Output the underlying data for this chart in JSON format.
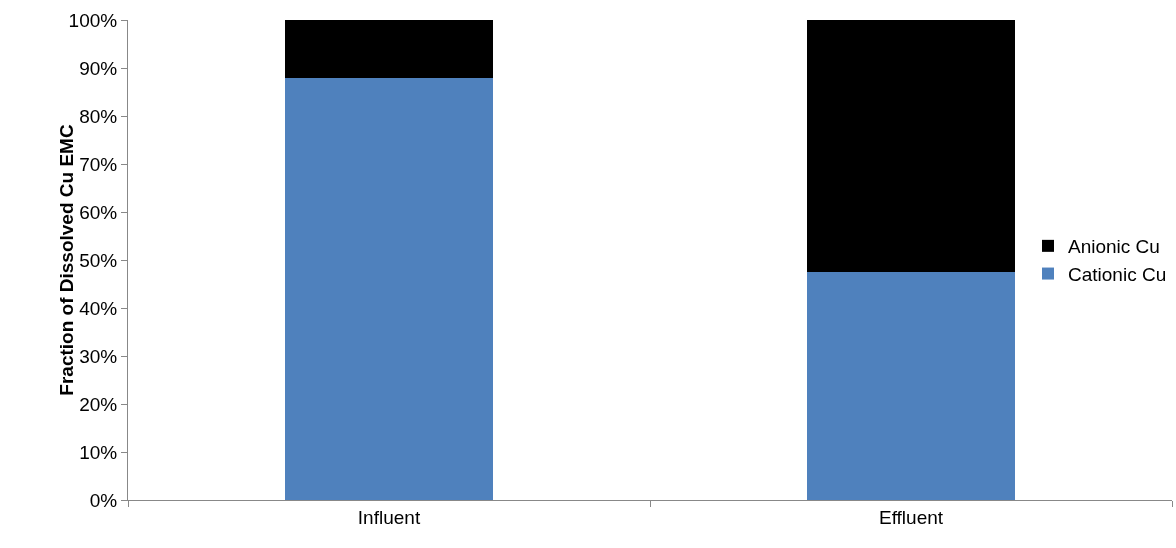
{
  "chart_data": {
    "type": "bar",
    "stacked": true,
    "ylabel": "Fraction of Dissolved Cu EMC",
    "categories": [
      "Influent",
      "Effluent"
    ],
    "series": [
      {
        "name": "Cationic Cu",
        "color": "#4f81bd",
        "values": [
          88,
          47.5
        ]
      },
      {
        "name": "Anionic Cu",
        "color": "#000000",
        "values": [
          12,
          52.5
        ]
      }
    ],
    "ylim": [
      0,
      100
    ],
    "yticks": [
      {
        "value": 0,
        "label": "0%"
      },
      {
        "value": 10,
        "label": "10%"
      },
      {
        "value": 20,
        "label": "20%"
      },
      {
        "value": 30,
        "label": "30%"
      },
      {
        "value": 40,
        "label": "40%"
      },
      {
        "value": 50,
        "label": "50%"
      },
      {
        "value": 60,
        "label": "60%"
      },
      {
        "value": 70,
        "label": "70%"
      },
      {
        "value": 80,
        "label": "80%"
      },
      {
        "value": 90,
        "label": "90%"
      },
      {
        "value": 100,
        "label": "100%"
      }
    ],
    "grid": false,
    "legend": "right"
  }
}
